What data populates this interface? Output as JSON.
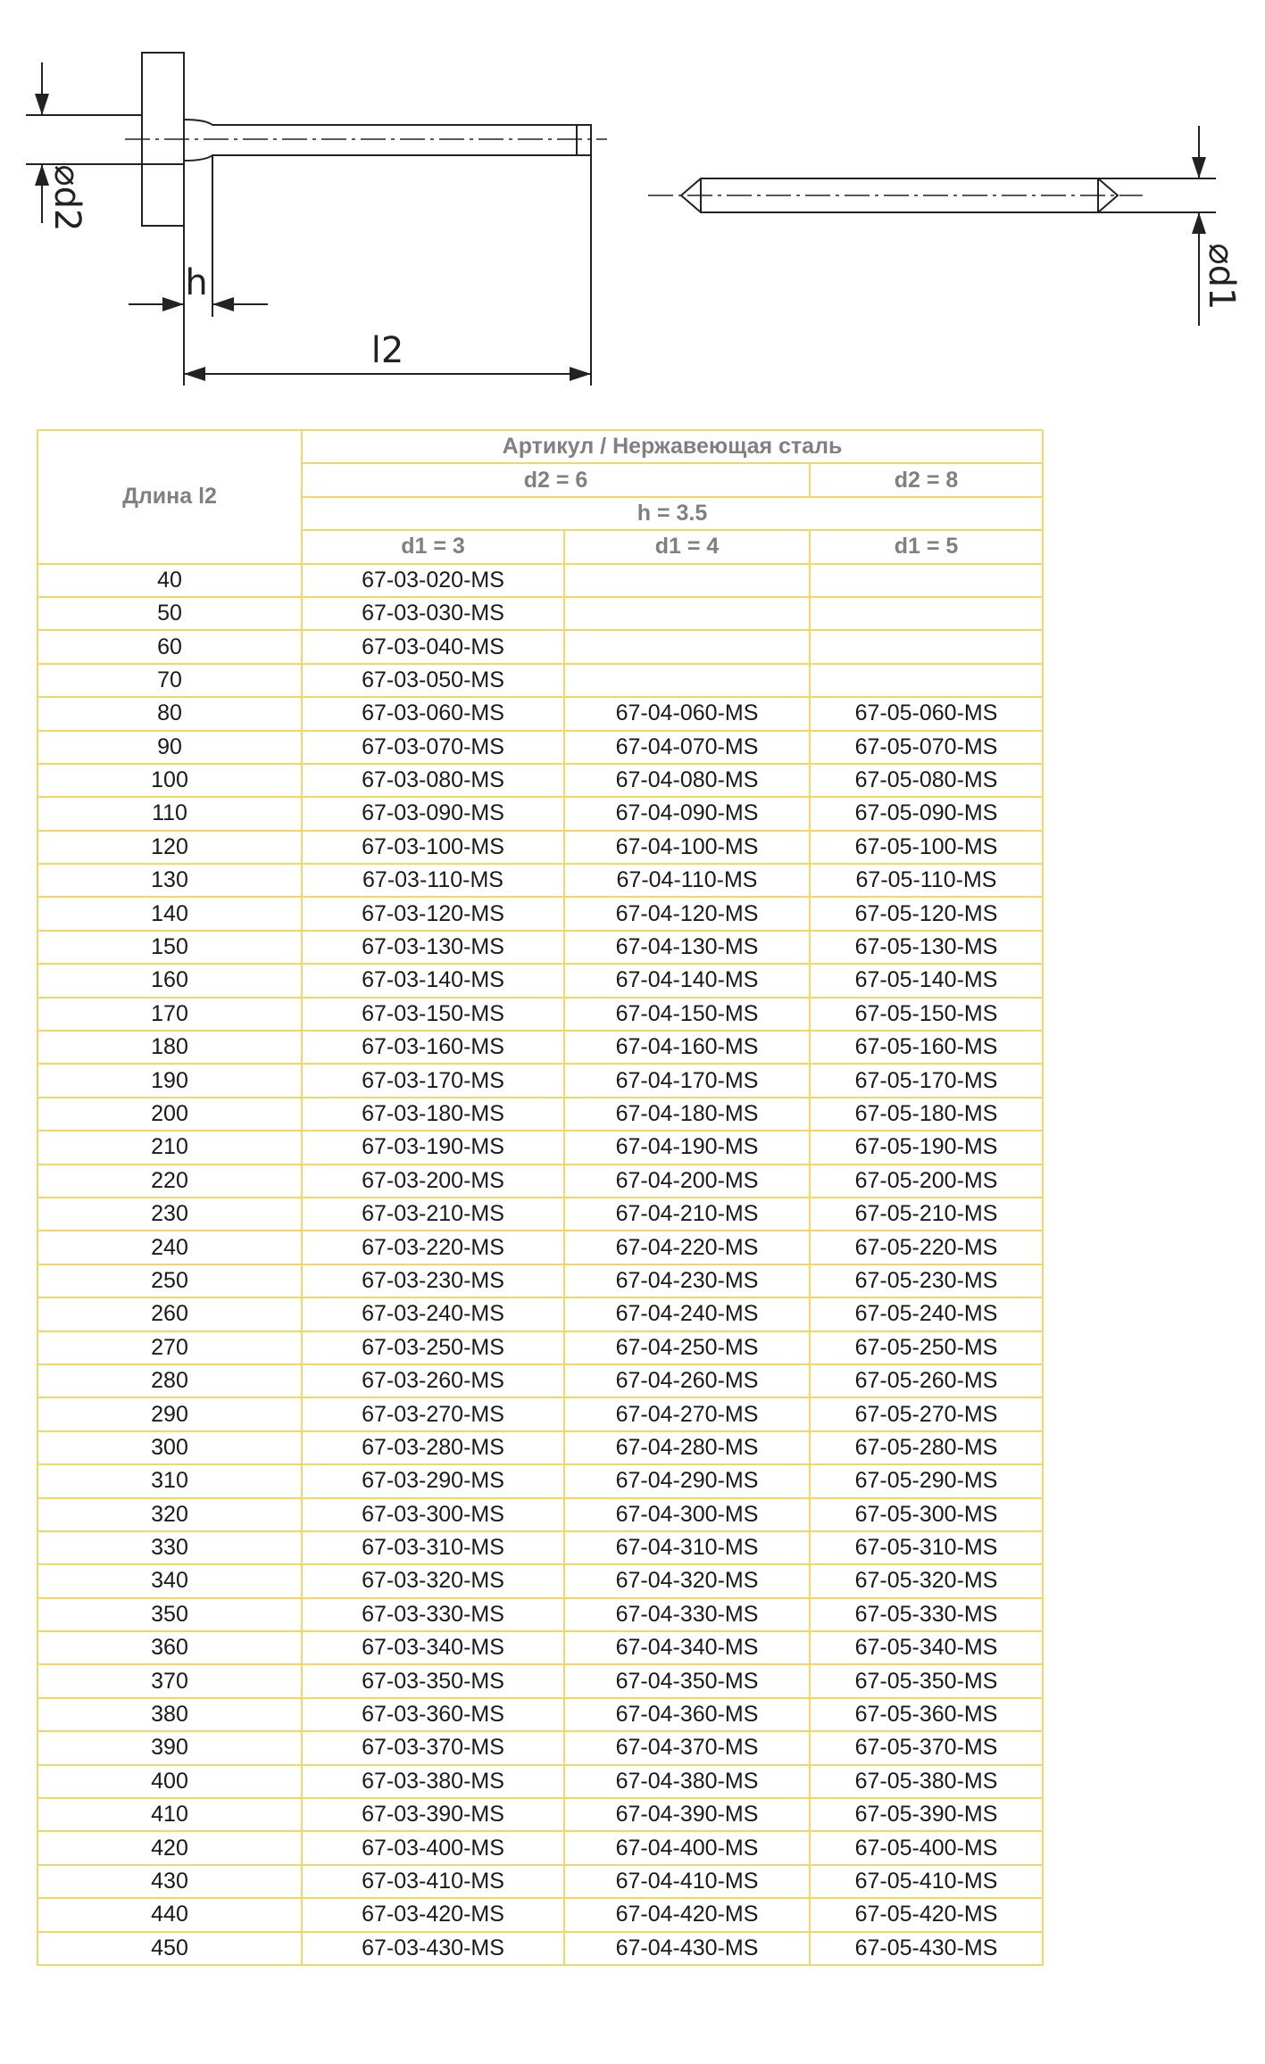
{
  "drawing": {
    "labels": {
      "d2": "⌀d2",
      "h": "h",
      "l2": "l2",
      "d1": "⌀d1"
    }
  },
  "table": {
    "header": {
      "length": "Длина l2",
      "article": "Артикул / Нержавеющая сталь",
      "d2_6": "d2 = 6",
      "d2_8": "d2 = 8",
      "h": "h = 3.5",
      "d1": [
        "d1 = 3",
        "d1 = 4",
        "d1 = 5"
      ]
    },
    "rows": [
      [
        40,
        "67-03-020-MS",
        null,
        null
      ],
      [
        50,
        "67-03-030-MS",
        null,
        null
      ],
      [
        60,
        "67-03-040-MS",
        null,
        null
      ],
      [
        70,
        "67-03-050-MS",
        null,
        null
      ],
      [
        80,
        "67-03-060-MS",
        "67-04-060-MS",
        "67-05-060-MS"
      ],
      [
        90,
        "67-03-070-MS",
        "67-04-070-MS",
        "67-05-070-MS"
      ],
      [
        100,
        "67-03-080-MS",
        "67-04-080-MS",
        "67-05-080-MS"
      ],
      [
        110,
        "67-03-090-MS",
        "67-04-090-MS",
        "67-05-090-MS"
      ],
      [
        120,
        "67-03-100-MS",
        "67-04-100-MS",
        "67-05-100-MS"
      ],
      [
        130,
        "67-03-110-MS",
        "67-04-110-MS",
        "67-05-110-MS"
      ],
      [
        140,
        "67-03-120-MS",
        "67-04-120-MS",
        "67-05-120-MS"
      ],
      [
        150,
        "67-03-130-MS",
        "67-04-130-MS",
        "67-05-130-MS"
      ],
      [
        160,
        "67-03-140-MS",
        "67-04-140-MS",
        "67-05-140-MS"
      ],
      [
        170,
        "67-03-150-MS",
        "67-04-150-MS",
        "67-05-150-MS"
      ],
      [
        180,
        "67-03-160-MS",
        "67-04-160-MS",
        "67-05-160-MS"
      ],
      [
        190,
        "67-03-170-MS",
        "67-04-170-MS",
        "67-05-170-MS"
      ],
      [
        200,
        "67-03-180-MS",
        "67-04-180-MS",
        "67-05-180-MS"
      ],
      [
        210,
        "67-03-190-MS",
        "67-04-190-MS",
        "67-05-190-MS"
      ],
      [
        220,
        "67-03-200-MS",
        "67-04-200-MS",
        "67-05-200-MS"
      ],
      [
        230,
        "67-03-210-MS",
        "67-04-210-MS",
        "67-05-210-MS"
      ],
      [
        240,
        "67-03-220-MS",
        "67-04-220-MS",
        "67-05-220-MS"
      ],
      [
        250,
        "67-03-230-MS",
        "67-04-230-MS",
        "67-05-230-MS"
      ],
      [
        260,
        "67-03-240-MS",
        "67-04-240-MS",
        "67-05-240-MS"
      ],
      [
        270,
        "67-03-250-MS",
        "67-04-250-MS",
        "67-05-250-MS"
      ],
      [
        280,
        "67-03-260-MS",
        "67-04-260-MS",
        "67-05-260-MS"
      ],
      [
        290,
        "67-03-270-MS",
        "67-04-270-MS",
        "67-05-270-MS"
      ],
      [
        300,
        "67-03-280-MS",
        "67-04-280-MS",
        "67-05-280-MS"
      ],
      [
        310,
        "67-03-290-MS",
        "67-04-290-MS",
        "67-05-290-MS"
      ],
      [
        320,
        "67-03-300-MS",
        "67-04-300-MS",
        "67-05-300-MS"
      ],
      [
        330,
        "67-03-310-MS",
        "67-04-310-MS",
        "67-05-310-MS"
      ],
      [
        340,
        "67-03-320-MS",
        "67-04-320-MS",
        "67-05-320-MS"
      ],
      [
        350,
        "67-03-330-MS",
        "67-04-330-MS",
        "67-05-330-MS"
      ],
      [
        360,
        "67-03-340-MS",
        "67-04-340-MS",
        "67-05-340-MS"
      ],
      [
        370,
        "67-03-350-MS",
        "67-04-350-MS",
        "67-05-350-MS"
      ],
      [
        380,
        "67-03-360-MS",
        "67-04-360-MS",
        "67-05-360-MS"
      ],
      [
        390,
        "67-03-370-MS",
        "67-04-370-MS",
        "67-05-370-MS"
      ],
      [
        400,
        "67-03-380-MS",
        "67-04-380-MS",
        "67-05-380-MS"
      ],
      [
        410,
        "67-03-390-MS",
        "67-04-390-MS",
        "67-05-390-MS"
      ],
      [
        420,
        "67-03-400-MS",
        "67-04-400-MS",
        "67-05-400-MS"
      ],
      [
        430,
        "67-03-410-MS",
        "67-04-410-MS",
        "67-05-410-MS"
      ],
      [
        440,
        "67-03-420-MS",
        "67-04-420-MS",
        "67-05-420-MS"
      ],
      [
        450,
        "67-03-430-MS",
        "67-04-430-MS",
        "67-05-430-MS"
      ]
    ]
  }
}
